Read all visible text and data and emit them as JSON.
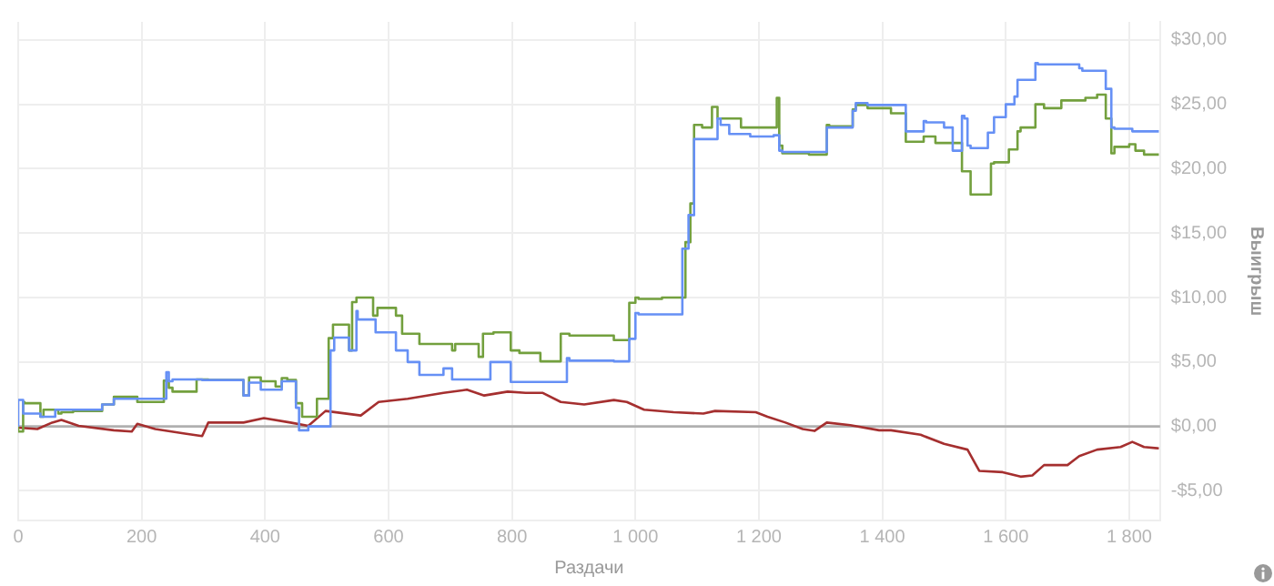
{
  "chart_data": {
    "type": "line",
    "xlabel": "Раздачи",
    "ylabel": "Выигрыш",
    "xlim": [
      0,
      1850
    ],
    "ylim": [
      -7.3,
      31.4
    ],
    "xticks": [
      0,
      200,
      400,
      600,
      800,
      {
        "value": 1000,
        "label": "1 000"
      },
      {
        "value": 1200,
        "label": "1 200"
      },
      {
        "value": 1400,
        "label": "1 400"
      },
      {
        "value": 1600,
        "label": "1 600"
      },
      {
        "value": 1800,
        "label": "1 800"
      }
    ],
    "yticks": [
      {
        "value": -5,
        "label": "-$5,00"
      },
      {
        "value": 0,
        "label": "$0,00"
      },
      {
        "value": 5,
        "label": "$5,00"
      },
      {
        "value": 10,
        "label": "$10,00"
      },
      {
        "value": 15,
        "label": "$15,00"
      },
      {
        "value": 20,
        "label": "$20,00"
      },
      {
        "value": 25,
        "label": "$25,00"
      },
      {
        "value": 30,
        "label": "$30,00"
      }
    ],
    "grid": true,
    "legend": false,
    "marker": "none",
    "line_style": "solid",
    "ref_lines": [
      {
        "axis": "y",
        "value": 0,
        "color": "#b0b0b0"
      }
    ],
    "series": [
      {
        "type": "step",
        "color": "#6690f5",
        "x": [
          0,
          8,
          36,
          60,
          65,
          136,
          155,
          193,
          240,
          244,
          250,
          298,
          365,
          374,
          393,
          427,
          436,
          450,
          455,
          470,
          474,
          506,
          512,
          522,
          536,
          541,
          548,
          550,
          579,
          612,
          631,
          650,
          689,
          703,
          708,
          765,
          770,
          798,
          803,
          850,
          889,
          893,
          965,
          990,
          1000,
          1005,
          1076,
          1086,
          1095,
          1108,
          1133,
          1138,
          1152,
          1186,
          1224,
          1233,
          1238,
          1310,
          1314,
          1352,
          1357,
          1376,
          1438,
          1443,
          1467,
          1471,
          1500,
          1514,
          1519,
          1529,
          1533,
          1538,
          1543,
          1571,
          1581,
          1600,
          1614,
          1619,
          1624,
          1648,
          1652,
          1719,
          1724,
          1762,
          1771,
          1776,
          1805,
          1814,
          1848
        ],
        "values": [
          0,
          2.06,
          1.0,
          0.75,
          1.3,
          1.3,
          1.7,
          2.15,
          2.15,
          4.2,
          3.5,
          3.65,
          3.6,
          2.4,
          3.4,
          2.85,
          3.5,
          3.5,
          1.45,
          -0.3,
          0,
          0,
          5.9,
          6.9,
          6.9,
          5.9,
          5.9,
          8.95,
          8.3,
          7.3,
          5.9,
          5.0,
          4.0,
          4.5,
          3.65,
          3.65,
          5.0,
          5.0,
          3.45,
          3.45,
          3.45,
          5.3,
          5.1,
          5.05,
          6.8,
          8.8,
          8.7,
          13.8,
          16.4,
          22.3,
          22.3,
          23.9,
          23.4,
          22.7,
          22.5,
          22.6,
          21.4,
          21.3,
          23.2,
          23.2,
          24.5,
          25.1,
          24.95,
          22.9,
          22.9,
          23.7,
          23.6,
          23.2,
          21.4,
          21.4,
          24.1,
          23.9,
          21.8,
          21.6,
          22.8,
          24.0,
          25.0,
          25.6,
          26.9,
          26.9,
          28.2,
          28.1,
          27.8,
          27.6,
          26.2,
          23.2,
          23.1,
          22.9,
          22.9
        ]
      },
      {
        "type": "step",
        "color": "#73a03e",
        "x": [
          0,
          8,
          10,
          36,
          41,
          65,
          70,
          89,
          136,
          155,
          193,
          236,
          244,
          250,
          289,
          308,
          365,
          374,
          393,
          417,
          427,
          436,
          450,
          460,
          470,
          484,
          503,
          510,
          517,
          536,
          541,
          548,
          575,
          582,
          612,
          622,
          650,
          689,
          703,
          708,
          746,
          753,
          770,
          798,
          812,
          846,
          879,
          893,
          965,
          990,
          1000,
          1005,
          1043,
          1081,
          1089,
          1095,
          1108,
          1124,
          1133,
          1171,
          1200,
          1229,
          1233,
          1238,
          1281,
          1310,
          1314,
          1352,
          1357,
          1376,
          1414,
          1438,
          1443,
          1467,
          1486,
          1500,
          1529,
          1543,
          1557,
          1576,
          1581,
          1605,
          1619,
          1624,
          1648,
          1662,
          1690,
          1729,
          1748,
          1762,
          1771,
          1776,
          1800,
          1810,
          1824,
          1848
        ],
        "values": [
          0,
          -0.4,
          1.9,
          1.8,
          0.75,
          1.3,
          1.0,
          1.1,
          1.2,
          1.7,
          2.3,
          1.9,
          3.55,
          3.0,
          2.7,
          3.65,
          3.6,
          2.4,
          3.8,
          3.5,
          3.1,
          3.75,
          3.6,
          1.8,
          0.75,
          0.75,
          2.15,
          6.85,
          7.9,
          7.9,
          5.9,
          9.65,
          10.0,
          8.6,
          9.2,
          8.6,
          7.2,
          6.4,
          6.4,
          5.9,
          6.4,
          5.4,
          7.2,
          7.3,
          5.9,
          5.7,
          5.05,
          7.2,
          7.05,
          6.7,
          9.6,
          10.0,
          9.9,
          10.0,
          14.3,
          17.3,
          23.4,
          23.2,
          24.8,
          23.9,
          23.2,
          23.2,
          25.5,
          21.8,
          21.2,
          21.1,
          23.4,
          23.3,
          24.6,
          24.95,
          24.7,
          24.3,
          22.1,
          22.1,
          22.5,
          22.0,
          22.0,
          19.8,
          18.0,
          18.0,
          20.4,
          20.5,
          21.5,
          22.9,
          23.2,
          25.0,
          24.7,
          25.3,
          25.5,
          25.75,
          23.9,
          21.2,
          21.7,
          21.9,
          21.4,
          21.1
        ]
      },
      {
        "color": "#a52f2f",
        "x": [
          0,
          31,
          55,
          70,
          98,
          155,
          184,
          193,
          222,
          270,
          298,
          308,
          365,
          398,
          441,
          470,
          498,
          555,
          584,
          631,
          689,
          727,
          755,
          793,
          822,
          850,
          879,
          917,
          965,
          986,
          1014,
          1062,
          1110,
          1129,
          1195,
          1214,
          1243,
          1271,
          1290,
          1310,
          1348,
          1395,
          1414,
          1462,
          1500,
          1538,
          1557,
          1595,
          1624,
          1643,
          1662,
          1700,
          1719,
          1748,
          1786,
          1805,
          1824,
          1848
        ],
        "values": [
          -0.1,
          -0.2,
          0.3,
          0.5,
          0.05,
          -0.3,
          -0.4,
          0.2,
          -0.2,
          -0.55,
          -0.75,
          0.3,
          0.3,
          0.65,
          0.3,
          0.05,
          1.2,
          0.85,
          1.9,
          2.15,
          2.6,
          2.85,
          2.4,
          2.7,
          2.6,
          2.6,
          1.9,
          1.7,
          2.05,
          1.9,
          1.3,
          1.1,
          1.0,
          1.2,
          1.1,
          0.75,
          0.3,
          -0.2,
          -0.35,
          0.3,
          0.1,
          -0.3,
          -0.3,
          -0.65,
          -1.35,
          -1.8,
          -3.45,
          -3.55,
          -3.9,
          -3.8,
          -3.0,
          -3.0,
          -2.3,
          -1.8,
          -1.6,
          -1.2,
          -1.6,
          -1.7
        ]
      }
    ]
  }
}
